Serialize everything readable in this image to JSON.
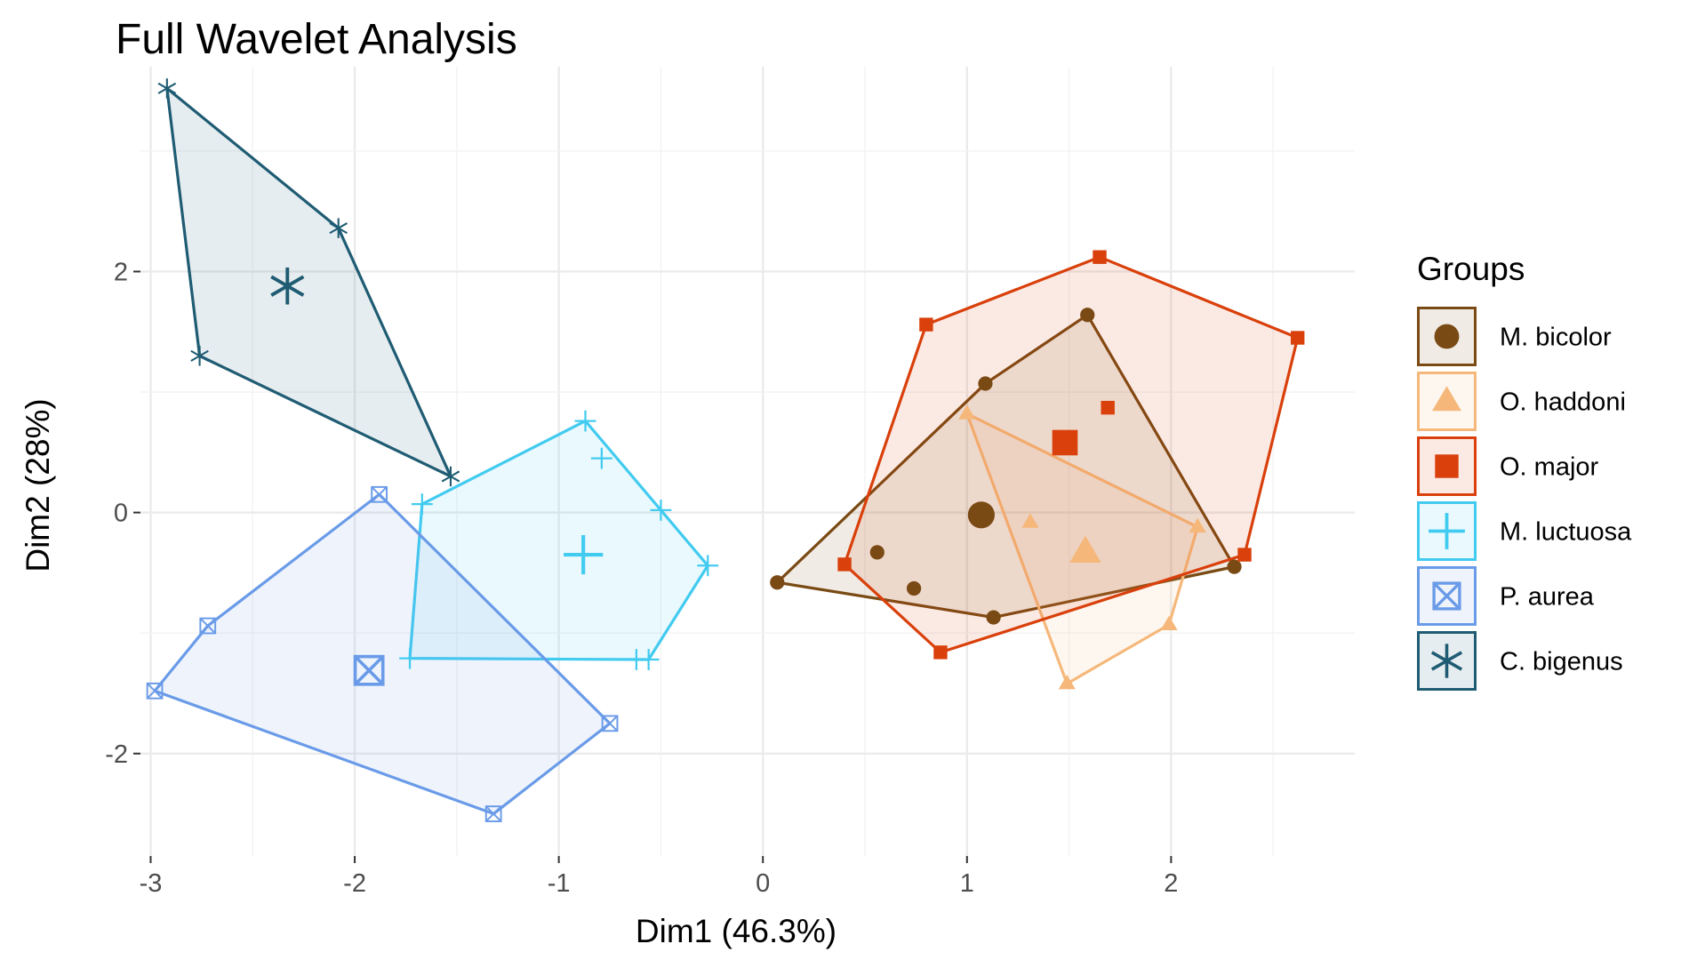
{
  "chart_data": {
    "type": "scatter",
    "title": "Full Wavelet Analysis",
    "xlabel": "Dim1 (46.3%)",
    "ylabel": "Dim2 (28%)",
    "xlim": [
      -3.05,
      2.9
    ],
    "ylim": [
      -2.85,
      3.7
    ],
    "x_ticks": [
      -3,
      -2,
      -1,
      0,
      1,
      2
    ],
    "x_tick_labels": [
      "-3",
      "-2",
      "-1",
      "0",
      "1",
      "2"
    ],
    "y_ticks": [
      -2,
      0,
      2
    ],
    "y_tick_labels": [
      "-2",
      "0",
      "2"
    ],
    "grid": true,
    "legend": {
      "title": "Groups",
      "position": "right"
    },
    "series": [
      {
        "name": "M. bicolor",
        "marker": "circle",
        "color": "#7a4a14",
        "points": [
          [
            0.07,
            -0.58
          ],
          [
            0.56,
            -0.33
          ],
          [
            0.74,
            -0.63
          ],
          [
            1.09,
            1.07
          ],
          [
            1.13,
            -0.87
          ],
          [
            1.59,
            1.64
          ],
          [
            2.31,
            -0.45
          ]
        ],
        "hull": [
          [
            0.07,
            -0.58
          ],
          [
            1.09,
            1.07
          ],
          [
            1.59,
            1.64
          ],
          [
            2.31,
            -0.45
          ],
          [
            1.13,
            -0.87
          ]
        ],
        "centroid": [
          1.07,
          -0.02
        ]
      },
      {
        "name": "O. haddoni",
        "marker": "triangle",
        "color": "#f5b87a",
        "points": [
          [
            1.0,
            0.82
          ],
          [
            1.31,
            -0.08
          ],
          [
            1.49,
            -1.42
          ],
          [
            1.99,
            -0.93
          ],
          [
            2.13,
            -0.12
          ]
        ],
        "hull": [
          [
            1.0,
            0.82
          ],
          [
            2.13,
            -0.12
          ],
          [
            1.99,
            -0.93
          ],
          [
            1.49,
            -1.42
          ]
        ],
        "centroid": [
          1.58,
          -0.33
        ]
      },
      {
        "name": "O. major",
        "marker": "square",
        "color": "#d9400b",
        "points": [
          [
            0.4,
            -0.43
          ],
          [
            0.8,
            1.56
          ],
          [
            0.87,
            -1.16
          ],
          [
            1.65,
            2.12
          ],
          [
            1.69,
            0.87
          ],
          [
            2.36,
            -0.35
          ],
          [
            2.62,
            1.45
          ]
        ],
        "hull": [
          [
            0.4,
            -0.43
          ],
          [
            0.8,
            1.56
          ],
          [
            1.65,
            2.12
          ],
          [
            2.62,
            1.45
          ],
          [
            2.36,
            -0.35
          ],
          [
            0.87,
            -1.16
          ]
        ],
        "centroid": [
          1.48,
          0.58
        ]
      },
      {
        "name": "M. luctuosa",
        "marker": "plus",
        "color": "#42cbf0",
        "points": [
          [
            -1.73,
            -1.21
          ],
          [
            -1.67,
            0.07
          ],
          [
            -0.87,
            0.76
          ],
          [
            -0.79,
            0.45
          ],
          [
            -0.62,
            -1.22
          ],
          [
            -0.56,
            -1.22
          ],
          [
            -0.5,
            0.02
          ],
          [
            -0.27,
            -0.44
          ]
        ],
        "hull": [
          [
            -1.73,
            -1.21
          ],
          [
            -1.67,
            0.07
          ],
          [
            -0.87,
            0.76
          ],
          [
            -0.27,
            -0.44
          ],
          [
            -0.56,
            -1.22
          ]
        ],
        "centroid": [
          -0.88,
          -0.35
        ]
      },
      {
        "name": "P. aurea",
        "marker": "square-x",
        "color": "#6a9be8",
        "points": [
          [
            -2.98,
            -1.48
          ],
          [
            -2.72,
            -0.94
          ],
          [
            -1.88,
            0.15
          ],
          [
            -1.32,
            -2.5
          ],
          [
            -0.75,
            -1.75
          ]
        ],
        "hull": [
          [
            -2.98,
            -1.48
          ],
          [
            -2.72,
            -0.94
          ],
          [
            -1.88,
            0.15
          ],
          [
            -0.75,
            -1.75
          ],
          [
            -1.32,
            -2.5
          ]
        ],
        "centroid": [
          -1.93,
          -1.31
        ]
      },
      {
        "name": "C. bigenus",
        "marker": "asterisk",
        "color": "#1f5c73",
        "points": [
          [
            -2.92,
            3.52
          ],
          [
            -2.76,
            1.3
          ],
          [
            -2.08,
            2.36
          ],
          [
            -1.53,
            0.3
          ]
        ],
        "hull": [
          [
            -2.92,
            3.52
          ],
          [
            -2.08,
            2.36
          ],
          [
            -1.53,
            0.3
          ],
          [
            -2.76,
            1.3
          ]
        ],
        "centroid": [
          -2.33,
          1.88
        ]
      }
    ]
  }
}
